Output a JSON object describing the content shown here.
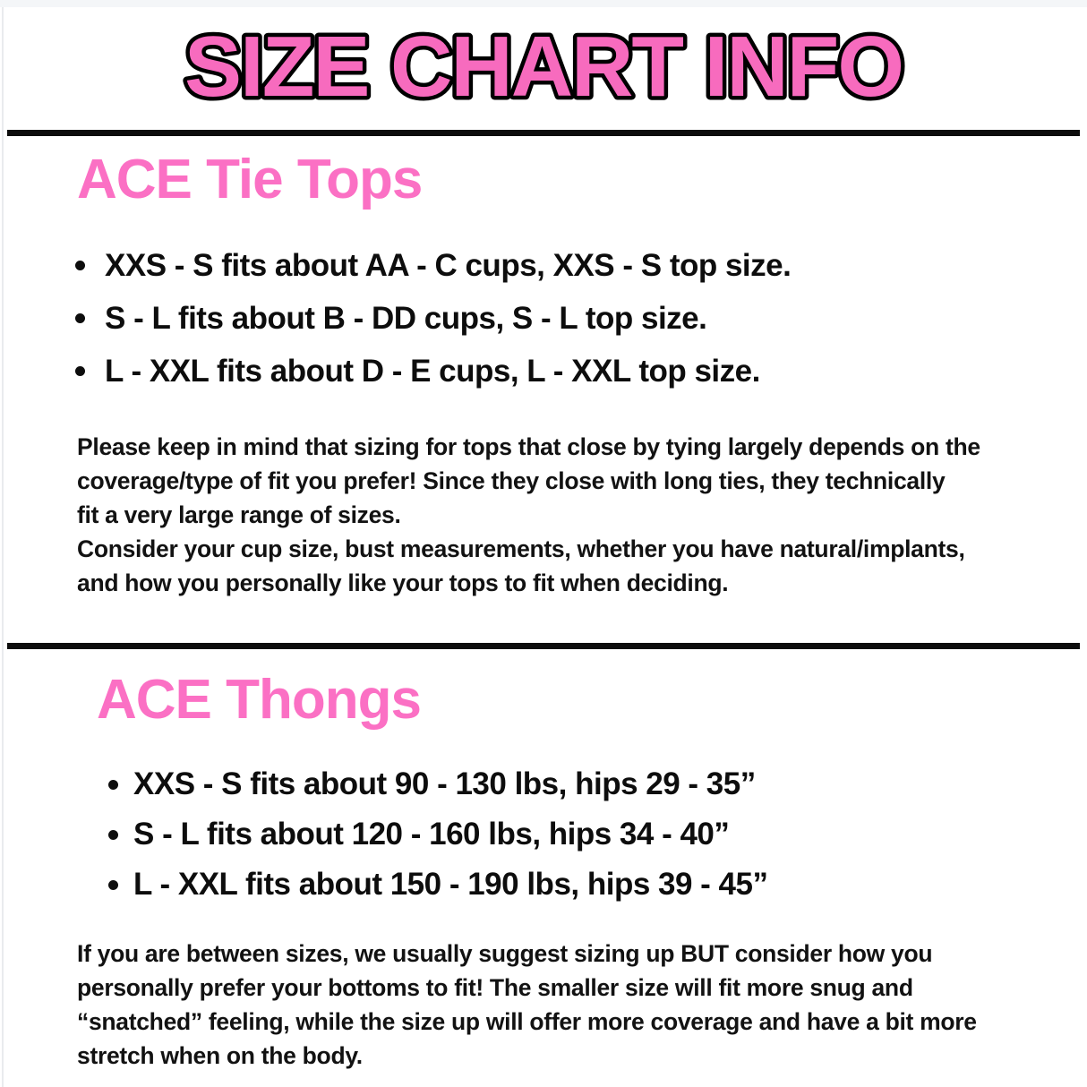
{
  "page": {
    "title": "SIZE CHART INFO",
    "title_fill": "#f76bbe",
    "title_outline": "#000000",
    "heading_color": "#fb70c4",
    "text_color": "#0d0d0d",
    "background": "#ffffff",
    "divider_color": "#0d0d0d"
  },
  "sections": [
    {
      "heading": "ACE Tie Tops",
      "bullets": [
        "XXS - S fits about AA - C cups, XXS - S top size.",
        "S - L fits about B - DD cups, S - L top size.",
        "L - XXL fits about D - E cups, L - XXL top size."
      ],
      "note": "Please keep in mind that sizing for tops that close by tying largely depends on the\ncoverage/type of fit you prefer! Since they close with long ties, they technically\nfit a very large range of sizes.\nConsider your cup size, bust measurements, whether you have natural/implants,\nand how you personally like your tops to fit when deciding."
    },
    {
      "heading": "ACE Thongs",
      "bullets": [
        "XXS - S fits about 90 - 130 lbs, hips 29 - 35”",
        "S - L fits about 120 - 160 lbs, hips 34 - 40”",
        "L - XXL fits about 150 - 190 lbs, hips 39 - 45”"
      ],
      "note": "If you are between sizes, we usually suggest sizing up BUT consider how you\npersonally prefer your bottoms to fit! The smaller size will fit more snug and\n“snatched” feeling, while the size up will offer more coverage and have a bit more\nstretch when on the body."
    }
  ]
}
